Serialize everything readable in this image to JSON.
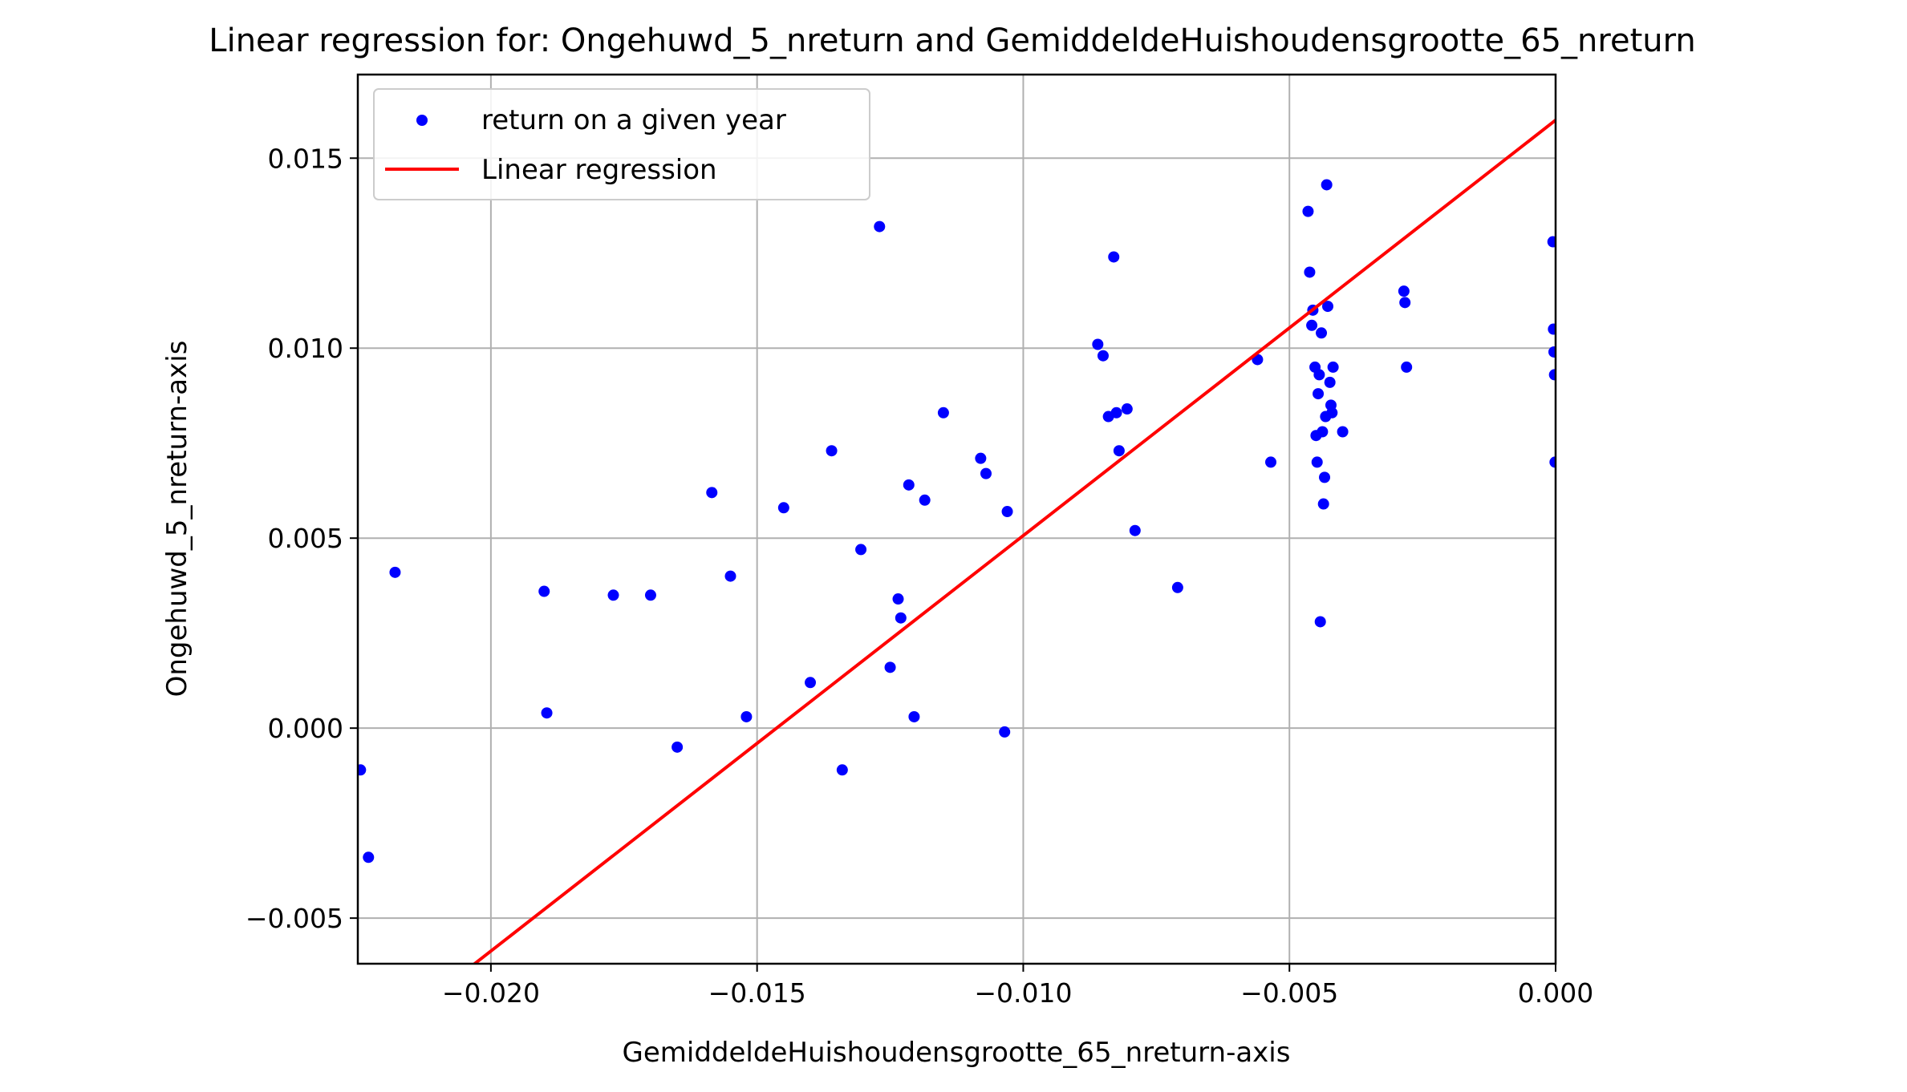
{
  "chart_data": {
    "type": "scatter",
    "title": "Linear regression for: Ongehuwd_5_nreturn and GemiddeldeHuishoudensgrootte_65_nreturn",
    "xlabel": "GemiddeldeHuishoudensgrootte_65_nreturn-axis",
    "ylabel": "Ongehuwd_5_nreturn-axis",
    "xlim": [
      -0.0225,
      0.0
    ],
    "ylim": [
      -0.0062,
      0.0172
    ],
    "grid": true,
    "legend_position": "top-left",
    "xticks": [
      {
        "value": -0.02,
        "label": "−0.020"
      },
      {
        "value": -0.015,
        "label": "−0.015"
      },
      {
        "value": -0.01,
        "label": "−0.010"
      },
      {
        "value": -0.005,
        "label": "−0.005"
      },
      {
        "value": 0.0,
        "label": "0.000"
      }
    ],
    "yticks": [
      {
        "value": -0.005,
        "label": "−0.005"
      },
      {
        "value": 0.0,
        "label": "0.000"
      },
      {
        "value": 0.005,
        "label": "0.005"
      },
      {
        "value": 0.01,
        "label": "0.010"
      },
      {
        "value": 0.015,
        "label": "0.015"
      }
    ],
    "series": [
      {
        "name": "return on a given year",
        "kind": "scatter",
        "color": "#0000ff",
        "points": [
          [
            -0.02245,
            -0.0011
          ],
          [
            -0.0223,
            -0.0034
          ],
          [
            -0.0218,
            0.0041
          ],
          [
            -0.019,
            0.0036
          ],
          [
            -0.01895,
            0.0004
          ],
          [
            -0.0177,
            0.0035
          ],
          [
            -0.017,
            0.0035
          ],
          [
            -0.0165,
            -0.0005
          ],
          [
            -0.01585,
            0.0062
          ],
          [
            -0.0155,
            0.004
          ],
          [
            -0.0152,
            0.0003
          ],
          [
            -0.0145,
            0.0058
          ],
          [
            -0.014,
            0.0012
          ],
          [
            -0.0136,
            0.0073
          ],
          [
            -0.0134,
            -0.0011
          ],
          [
            -0.01305,
            0.0047
          ],
          [
            -0.0127,
            0.0132
          ],
          [
            -0.0125,
            0.0016
          ],
          [
            -0.01235,
            0.0034
          ],
          [
            -0.0123,
            0.0029
          ],
          [
            -0.01215,
            0.0064
          ],
          [
            -0.01205,
            0.0003
          ],
          [
            -0.01185,
            0.006
          ],
          [
            -0.0115,
            0.0083
          ],
          [
            -0.0108,
            0.0071
          ],
          [
            -0.0107,
            0.0067
          ],
          [
            -0.01035,
            -0.0001
          ],
          [
            -0.0103,
            0.0057
          ],
          [
            -0.0086,
            0.0101
          ],
          [
            -0.0085,
            0.0098
          ],
          [
            -0.0084,
            0.0082
          ],
          [
            -0.0083,
            0.0124
          ],
          [
            -0.00825,
            0.0083
          ],
          [
            -0.0082,
            0.0073
          ],
          [
            -0.00805,
            0.0084
          ],
          [
            -0.0079,
            0.0052
          ],
          [
            -0.0071,
            0.0037
          ],
          [
            -0.0056,
            0.0097
          ],
          [
            -0.00535,
            0.007
          ],
          [
            -0.00465,
            0.0136
          ],
          [
            -0.00462,
            0.012
          ],
          [
            -0.00458,
            0.0106
          ],
          [
            -0.00456,
            0.011
          ],
          [
            -0.00452,
            0.0095
          ],
          [
            -0.0045,
            0.0077
          ],
          [
            -0.00448,
            0.007
          ],
          [
            -0.00446,
            0.0088
          ],
          [
            -0.00444,
            0.0093
          ],
          [
            -0.00442,
            0.0028
          ],
          [
            -0.0044,
            0.0104
          ],
          [
            -0.00438,
            0.0078
          ],
          [
            -0.00436,
            0.0059
          ],
          [
            -0.00434,
            0.0066
          ],
          [
            -0.00432,
            0.0082
          ],
          [
            -0.0043,
            0.0143
          ],
          [
            -0.00428,
            0.0111
          ],
          [
            -0.00424,
            0.0091
          ],
          [
            -0.00422,
            0.0085
          ],
          [
            -0.0042,
            0.0083
          ],
          [
            -0.00418,
            0.0095
          ],
          [
            -0.004,
            0.0078
          ],
          [
            -0.00285,
            0.0115
          ],
          [
            -0.00283,
            0.0112
          ],
          [
            -0.0028,
            0.0095
          ],
          [
            -5e-05,
            0.0128
          ],
          [
            -4e-05,
            0.0105
          ],
          [
            -3e-05,
            0.0099
          ],
          [
            -2e-05,
            0.0093
          ],
          [
            -1e-05,
            0.007
          ]
        ]
      },
      {
        "name": "Linear regression",
        "kind": "line",
        "color": "#ff0000",
        "points": [
          [
            -0.0225,
            -0.0086
          ],
          [
            0.0,
            0.016
          ]
        ]
      }
    ]
  }
}
